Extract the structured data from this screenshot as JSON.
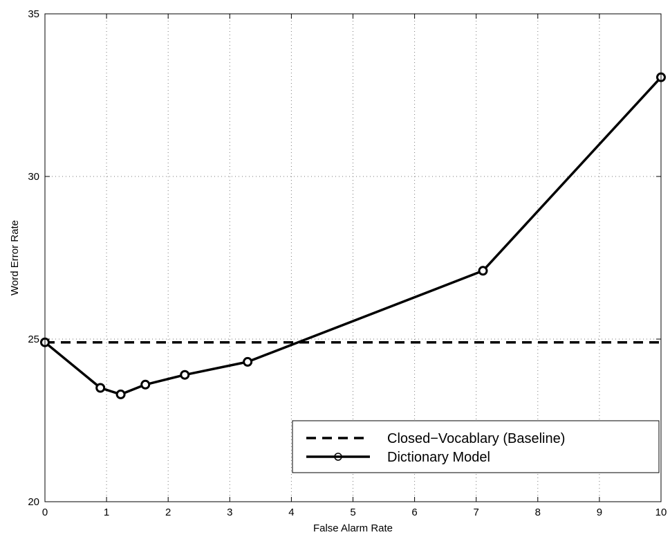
{
  "chart_data": {
    "type": "line",
    "title": "",
    "xlabel": "False Alarm Rate",
    "ylabel": "Word Error Rate",
    "xlim": [
      0,
      10
    ],
    "ylim": [
      20,
      35
    ],
    "xticks": [
      0,
      1,
      2,
      3,
      4,
      5,
      6,
      7,
      8,
      9,
      10
    ],
    "yticks": [
      20,
      25,
      30,
      35
    ],
    "xtick_labels": [
      "0",
      "1",
      "2",
      "3",
      "4",
      "5",
      "6",
      "7",
      "8",
      "9",
      "10"
    ],
    "ytick_labels": [
      "20",
      "25",
      "30",
      "35"
    ],
    "grid": true,
    "legend_position": "lower-right",
    "series": [
      {
        "name": "Closed−Vocablary (Baseline)",
        "style": "dashed",
        "marker": "none",
        "color": "#000000",
        "x": [
          0,
          10
        ],
        "y": [
          24.9,
          24.9
        ]
      },
      {
        "name": "Dictionary Model",
        "style": "solid",
        "marker": "circle",
        "color": "#000000",
        "x": [
          0,
          0.9,
          1.23,
          1.63,
          2.27,
          3.29,
          7.11,
          10
        ],
        "y": [
          24.9,
          23.5,
          23.3,
          23.6,
          23.9,
          24.3,
          27.1,
          33.05
        ]
      }
    ]
  }
}
